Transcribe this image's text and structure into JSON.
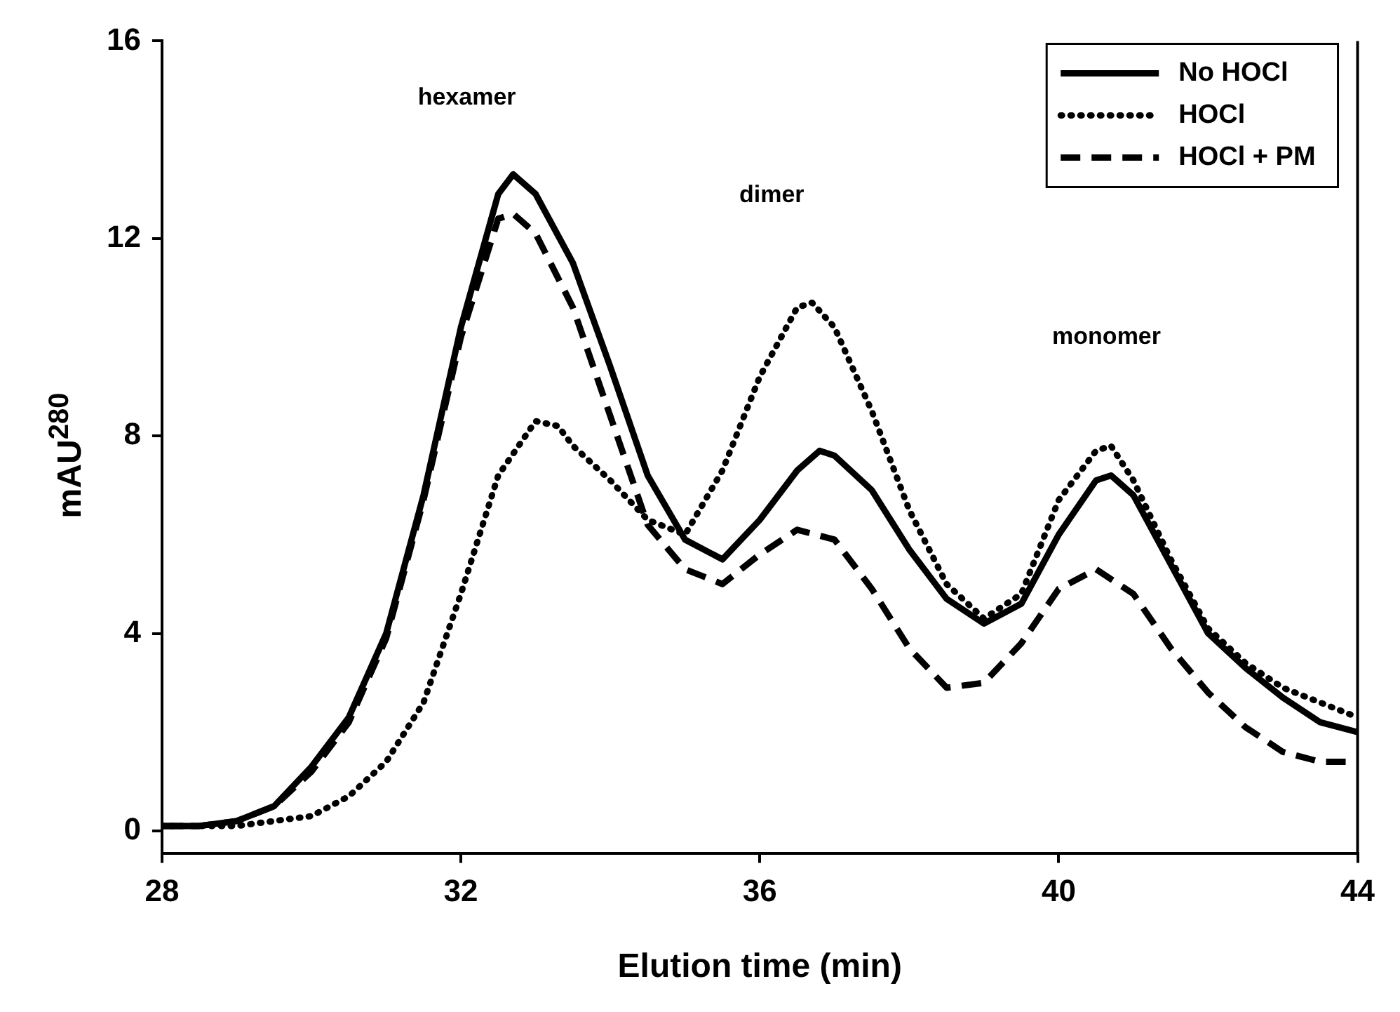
{
  "chart_data": {
    "type": "line",
    "xlabel": "Elution time (min)",
    "ylabel": "mAU$^{280}$",
    "xlim": [
      28,
      44
    ],
    "xticks": [
      28,
      32,
      36,
      40,
      44
    ],
    "ylim": [
      -0.45,
      16
    ],
    "yticks": [
      0,
      4,
      8,
      12,
      16
    ],
    "grid": false,
    "legend": "top right",
    "marker": "none",
    "annotations": [
      "hexamer",
      "dimer",
      "monomer"
    ],
    "series": [
      {
        "name": "No HOCl",
        "color": "#000000",
        "line_style": "solid",
        "x": [
          28,
          28.5,
          29,
          29.5,
          30,
          30.5,
          31,
          31.5,
          32,
          32.5,
          32.7,
          33,
          33.5,
          34,
          34.5,
          35,
          35.5,
          36,
          36.5,
          36.8,
          37,
          37.5,
          38,
          38.5,
          39,
          39.5,
          40,
          40.5,
          40.7,
          41,
          41.5,
          42,
          42.5,
          43,
          43.5,
          44
        ],
        "values": [
          0.1,
          0.1,
          0.2,
          0.5,
          1.3,
          2.3,
          4.0,
          6.8,
          10.2,
          12.9,
          13.3,
          12.9,
          11.5,
          9.4,
          7.2,
          5.9,
          5.5,
          6.3,
          7.3,
          7.7,
          7.6,
          6.9,
          5.7,
          4.7,
          4.2,
          4.6,
          6.0,
          7.1,
          7.2,
          6.8,
          5.4,
          4.0,
          3.3,
          2.7,
          2.2,
          2.0
        ]
      },
      {
        "name": "HOCl",
        "color": "#000000",
        "line_style": "dotted",
        "x": [
          28,
          29,
          29.5,
          30,
          30.5,
          31,
          31.5,
          32,
          32.5,
          33,
          33.3,
          33.5,
          34,
          34.5,
          35,
          35.5,
          36,
          36.5,
          36.7,
          37,
          37.5,
          38,
          38.5,
          39,
          39.5,
          40,
          40.5,
          40.7,
          41,
          41.5,
          42,
          42.5,
          43,
          43.5,
          44
        ],
        "values": [
          0.1,
          0.1,
          0.2,
          0.3,
          0.7,
          1.4,
          2.6,
          4.8,
          7.2,
          8.3,
          8.2,
          7.8,
          7.1,
          6.3,
          6.0,
          7.3,
          9.2,
          10.6,
          10.7,
          10.2,
          8.5,
          6.5,
          5.0,
          4.3,
          4.8,
          6.7,
          7.7,
          7.8,
          7.1,
          5.5,
          4.1,
          3.4,
          2.9,
          2.6,
          2.3
        ]
      },
      {
        "name": "HOCl + PM",
        "color": "#000000",
        "line_style": "dashed",
        "x": [
          28,
          28.5,
          29,
          29.5,
          30,
          30.5,
          31,
          31.5,
          32,
          32.5,
          32.7,
          33,
          33.5,
          34,
          34.5,
          35,
          35.5,
          36,
          36.5,
          37,
          37.5,
          38,
          38.5,
          39,
          39.5,
          40,
          40.5,
          41,
          41.5,
          42,
          42.5,
          43,
          43.5,
          44
        ],
        "values": [
          0.1,
          0.1,
          0.2,
          0.5,
          1.2,
          2.2,
          3.9,
          6.7,
          10.0,
          12.4,
          12.5,
          12.1,
          10.6,
          8.4,
          6.2,
          5.3,
          5.0,
          5.6,
          6.1,
          5.9,
          4.9,
          3.7,
          2.9,
          3.0,
          3.8,
          4.9,
          5.3,
          4.8,
          3.7,
          2.8,
          2.1,
          1.6,
          1.4,
          1.4
        ]
      }
    ]
  }
}
